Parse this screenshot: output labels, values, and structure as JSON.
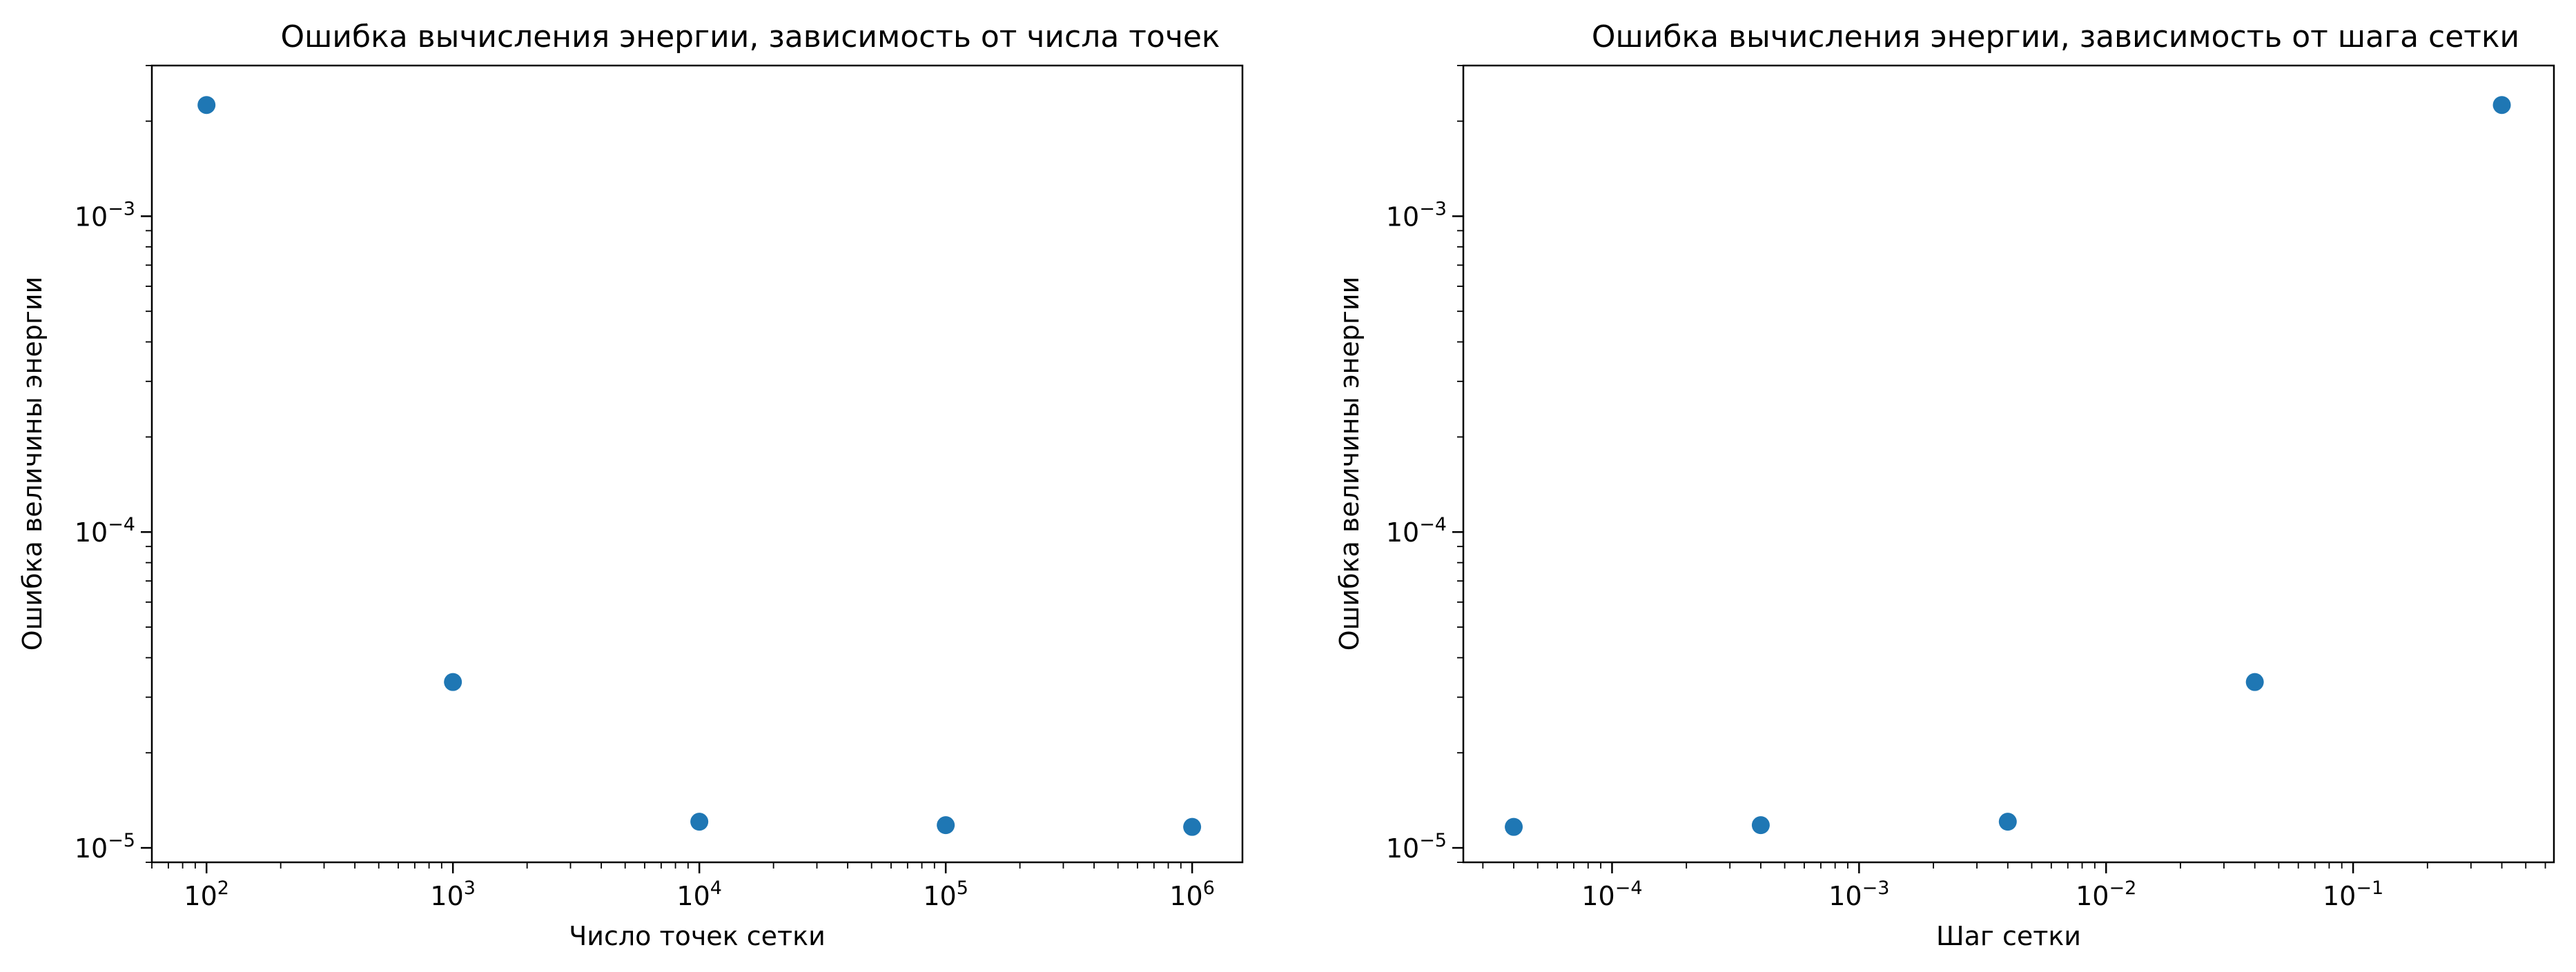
{
  "chart_data": [
    {
      "type": "scatter",
      "title": "Ошибка вычисления энергии, зависимость от числа точек",
      "xlabel": "Число точек сетки",
      "ylabel": "Ошибка величины энергии",
      "xscale": "log",
      "yscale": "log",
      "xlim": [
        60,
        1600000
      ],
      "ylim": [
        9e-06,
        0.003
      ],
      "xticks": [
        {
          "value": 100,
          "base": "10",
          "exp": "2"
        },
        {
          "value": 1000,
          "base": "10",
          "exp": "3"
        },
        {
          "value": 10000,
          "base": "10",
          "exp": "4"
        },
        {
          "value": 100000,
          "base": "10",
          "exp": "5"
        },
        {
          "value": 1000000,
          "base": "10",
          "exp": "6"
        }
      ],
      "yticks": [
        {
          "value": 1e-05,
          "base": "10",
          "exp": "−5"
        },
        {
          "value": 0.0001,
          "base": "10",
          "exp": "−4"
        },
        {
          "value": 0.001,
          "base": "10",
          "exp": "−3"
        }
      ],
      "grid": false,
      "color": "#1f77b4",
      "x": [
        100,
        1000,
        10000,
        100000,
        1000000
      ],
      "y": [
        0.00225,
        3.35e-05,
        1.21e-05,
        1.18e-05,
        1.165e-05
      ]
    },
    {
      "type": "scatter",
      "title": "Ошибка вычисления энергии, зависимость от шага сетки",
      "xlabel": "Шаг сетки",
      "ylabel": "Ошибка величины энергии",
      "xscale": "log",
      "yscale": "log",
      "xlim": [
        2.5e-05,
        0.65
      ],
      "ylim": [
        9e-06,
        0.003
      ],
      "xticks": [
        {
          "value": 0.0001,
          "base": "10",
          "exp": "−4"
        },
        {
          "value": 0.001,
          "base": "10",
          "exp": "−3"
        },
        {
          "value": 0.01,
          "base": "10",
          "exp": "−2"
        },
        {
          "value": 0.1,
          "base": "10",
          "exp": "−1"
        }
      ],
      "yticks": [
        {
          "value": 1e-05,
          "base": "10",
          "exp": "−5"
        },
        {
          "value": 0.0001,
          "base": "10",
          "exp": "−4"
        },
        {
          "value": 0.001,
          "base": "10",
          "exp": "−3"
        }
      ],
      "grid": false,
      "color": "#1f77b4",
      "x": [
        4e-05,
        0.0004,
        0.004,
        0.04,
        0.4
      ],
      "y": [
        1.165e-05,
        1.18e-05,
        1.21e-05,
        3.35e-05,
        0.00225
      ]
    }
  ]
}
